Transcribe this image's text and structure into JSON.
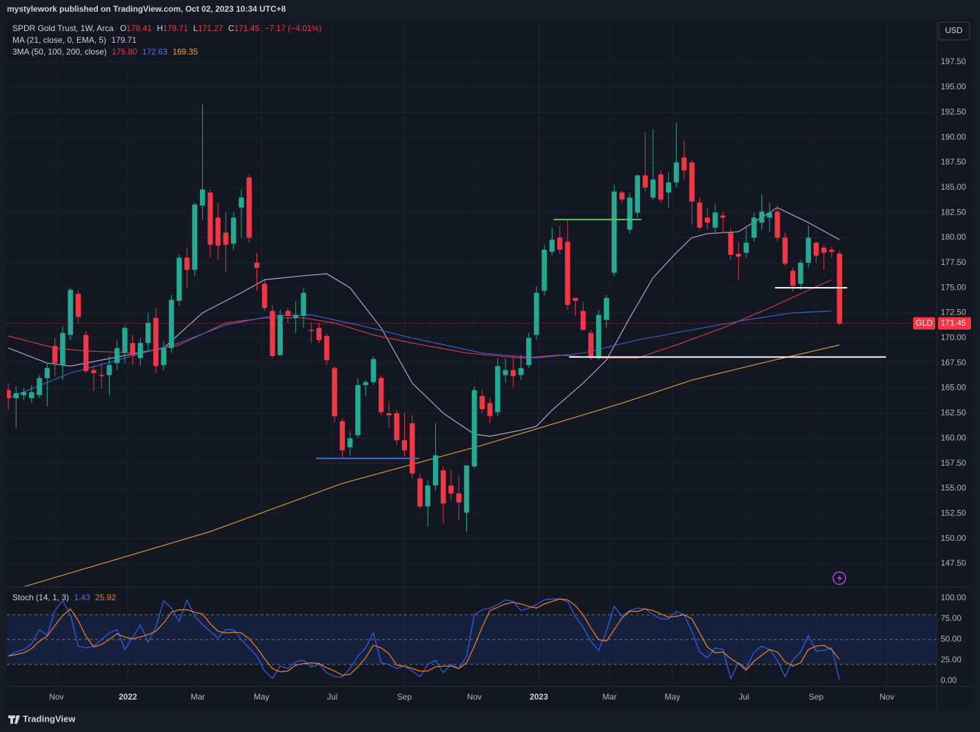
{
  "header": "mystylework published on TradingView.com, Oct 02, 2023 10:34 UTC+8",
  "footer": "TradingView",
  "currency": "USD",
  "symbol_tag": "GLD",
  "chart_data": {
    "type": "candlestick",
    "legend": {
      "symbol": "SPDR Gold Trust, 1W, Arca",
      "ohlc_labels": [
        "O",
        "H",
        "L",
        "C"
      ],
      "change": "−7.17 (−4.01%)",
      "ma": "MA (21, close, 0, EMA, 5)",
      "ma_value": "179.71",
      "ma3": "3MA (50, 100, 200, close)",
      "ma3_values": [
        "175.80",
        "172.63",
        "169.35"
      ]
    },
    "up_color": "#22ab94",
    "down_color": "#f23645",
    "candles": [
      [
        164.8,
        165.5,
        162.8,
        164.0
      ],
      [
        164.0,
        165.2,
        161.0,
        164.5
      ],
      [
        164.3,
        165.0,
        163.8,
        164.6
      ],
      [
        164.0,
        165.3,
        163.5,
        164.6
      ],
      [
        164.3,
        166.3,
        164.0,
        166.0
      ],
      [
        166.0,
        167.5,
        163.2,
        167.0
      ],
      [
        169.2,
        170.0,
        166.2,
        167.5
      ],
      [
        167.3,
        171.2,
        165.8,
        170.5
      ],
      [
        170.3,
        175.0,
        169.8,
        174.8
      ],
      [
        174.4,
        174.8,
        171.5,
        172.1
      ],
      [
        170.3,
        170.7,
        166.5,
        166.7
      ],
      [
        166.8,
        167.3,
        164.7,
        166.5
      ],
      [
        166.3,
        167.5,
        165.0,
        166.2
      ],
      [
        166.3,
        168.2,
        164.3,
        167.3
      ],
      [
        167.5,
        169.8,
        166.8,
        169.0
      ],
      [
        168.5,
        171.3,
        167.5,
        171.0
      ],
      [
        169.5,
        170.3,
        167.3,
        168.3
      ],
      [
        168.0,
        170.0,
        167.2,
        169.5
      ],
      [
        169.5,
        172.5,
        168.8,
        171.5
      ],
      [
        172.0,
        173.0,
        166.5,
        167.2
      ],
      [
        167.3,
        169.7,
        166.8,
        169.0
      ],
      [
        169.0,
        174.3,
        168.5,
        173.8
      ],
      [
        173.7,
        178.3,
        173.2,
        178.0
      ],
      [
        178.0,
        179.0,
        175.0,
        176.8
      ],
      [
        176.8,
        183.5,
        176.2,
        183.3
      ],
      [
        183.2,
        193.3,
        181.8,
        184.8
      ],
      [
        184.5,
        184.8,
        178.0,
        179.3
      ],
      [
        182.0,
        183.5,
        177.8,
        179.2
      ],
      [
        180.5,
        182.5,
        176.6,
        179.3
      ],
      [
        179.4,
        182.5,
        178.8,
        182.0
      ],
      [
        183.0,
        184.8,
        180.0,
        184.0
      ],
      [
        186.0,
        186.3,
        179.5,
        180.0
      ],
      [
        177.5,
        178.5,
        174.7,
        177.0
      ],
      [
        175.4,
        175.8,
        172.7,
        173.0
      ],
      [
        172.7,
        173.3,
        168.0,
        168.2
      ],
      [
        168.3,
        172.8,
        168.2,
        172.3
      ],
      [
        172.7,
        173.0,
        171.5,
        172.2
      ],
      [
        172.0,
        173.7,
        170.5,
        172.3
      ],
      [
        172.2,
        175.0,
        171.0,
        174.5
      ],
      [
        170.8,
        171.5,
        169.5,
        170.7
      ],
      [
        171.0,
        171.5,
        169.5,
        169.8
      ],
      [
        170.2,
        170.4,
        167.3,
        167.8
      ],
      [
        167.0,
        167.2,
        161.6,
        162.2
      ],
      [
        161.7,
        162.0,
        158.0,
        158.8
      ],
      [
        159.1,
        160.7,
        158.3,
        160.0
      ],
      [
        160.3,
        166.0,
        160.0,
        165.3
      ],
      [
        165.3,
        165.8,
        164.2,
        165.6
      ],
      [
        165.6,
        168.2,
        165.3,
        167.9
      ],
      [
        166.0,
        166.3,
        162.3,
        162.6
      ],
      [
        162.5,
        163.7,
        161.0,
        162.3
      ],
      [
        162.5,
        162.8,
        159.3,
        159.8
      ],
      [
        159.8,
        162.5,
        158.2,
        158.8
      ],
      [
        161.5,
        162.3,
        156.0,
        156.5
      ],
      [
        156.0,
        156.5,
        153.0,
        153.2
      ],
      [
        153.2,
        155.8,
        151.2,
        155.3
      ],
      [
        155.3,
        161.5,
        154.8,
        158.3
      ],
      [
        156.8,
        157.2,
        151.5,
        153.5
      ],
      [
        155.3,
        156.8,
        153.8,
        154.5
      ],
      [
        154.5,
        156.3,
        151.8,
        153.6
      ],
      [
        152.6,
        157.3,
        150.7,
        157.3
      ],
      [
        157.2,
        165.2,
        157.0,
        164.8
      ],
      [
        164.2,
        164.8,
        162.5,
        162.9
      ],
      [
        163.5,
        164.0,
        161.5,
        162.2
      ],
      [
        162.6,
        168.0,
        162.2,
        167.2
      ],
      [
        166.3,
        168.0,
        165.5,
        166.8
      ],
      [
        166.8,
        168.2,
        165.0,
        166.2
      ],
      [
        166.3,
        168.3,
        165.8,
        167.0
      ],
      [
        167.3,
        170.5,
        167.0,
        170.0
      ],
      [
        170.3,
        175.2,
        169.8,
        174.5
      ],
      [
        174.7,
        179.3,
        174.2,
        178.8
      ],
      [
        178.6,
        181.0,
        178.2,
        179.8
      ],
      [
        180.0,
        181.2,
        178.3,
        178.8
      ],
      [
        179.6,
        181.8,
        172.8,
        173.3
      ],
      [
        174.0,
        174.0,
        172.2,
        173.7
      ],
      [
        172.7,
        173.6,
        170.8,
        170.8
      ],
      [
        170.5,
        170.8,
        167.8,
        168.0
      ],
      [
        168.0,
        172.8,
        167.8,
        172.3
      ],
      [
        171.8,
        174.3,
        171.0,
        174.0
      ],
      [
        176.5,
        185.3,
        176.2,
        184.6
      ],
      [
        184.5,
        184.7,
        183.5,
        183.8
      ],
      [
        180.8,
        184.5,
        180.4,
        184.0
      ],
      [
        182.5,
        186.3,
        182.0,
        186.2
      ],
      [
        186.2,
        190.5,
        184.6,
        185.0
      ],
      [
        184.0,
        190.8,
        183.8,
        185.8
      ],
      [
        186.3,
        186.7,
        183.5,
        183.8
      ],
      [
        184.5,
        186.5,
        183.0,
        185.5
      ],
      [
        185.5,
        191.4,
        185.0,
        187.5
      ],
      [
        188.0,
        189.7,
        185.8,
        186.7
      ],
      [
        187.5,
        187.8,
        181.3,
        183.6
      ],
      [
        183.5,
        184.0,
        180.8,
        181.0
      ],
      [
        182.0,
        183.0,
        180.8,
        181.5
      ],
      [
        181.0,
        183.3,
        180.5,
        182.5
      ],
      [
        182.2,
        182.6,
        180.6,
        182.0
      ],
      [
        180.5,
        181.0,
        177.8,
        178.3
      ],
      [
        178.4,
        179.6,
        175.8,
        178.1
      ],
      [
        178.5,
        181.0,
        178.0,
        179.5
      ],
      [
        180.0,
        182.5,
        179.6,
        182.0
      ],
      [
        181.5,
        184.3,
        180.8,
        182.6
      ],
      [
        182.0,
        183.5,
        180.6,
        182.5
      ],
      [
        182.6,
        183.2,
        179.6,
        180.0
      ],
      [
        180.0,
        180.5,
        177.2,
        177.4
      ],
      [
        176.7,
        177.0,
        174.6,
        175.2
      ],
      [
        175.4,
        177.8,
        174.8,
        177.5
      ],
      [
        177.5,
        181.2,
        177.0,
        180.0
      ],
      [
        179.5,
        179.6,
        177.5,
        178.2
      ],
      [
        179.0,
        179.3,
        176.8,
        178.5
      ],
      [
        178.8,
        179.1,
        178.0,
        178.6
      ],
      [
        178.41,
        178.71,
        171.27,
        171.45
      ]
    ],
    "lines": [
      {
        "color": "#b7a6d8",
        "x": [
          0,
          5,
          8,
          12,
          20,
          25,
          30,
          33,
          38,
          41,
          44,
          48,
          52,
          56,
          60,
          62,
          66,
          68,
          70,
          74,
          77,
          80,
          83,
          86,
          88,
          90,
          94,
          98,
          99,
          103,
          107
        ],
        "values": [
          169,
          167.5,
          167.2,
          167.8,
          169,
          172.5,
          174.5,
          175.8,
          176.2,
          176.4,
          175,
          171,
          165.5,
          162.5,
          160.4,
          160.2,
          160.8,
          161.2,
          162.8,
          165.5,
          167.8,
          172,
          176,
          178.5,
          180,
          180.4,
          180.6,
          182.5,
          183,
          181.5,
          179.8
        ]
      },
      {
        "color": "#d03a48",
        "x": [
          0,
          6,
          10,
          17,
          22,
          28,
          33,
          38,
          42,
          47,
          52,
          59,
          66,
          71,
          76,
          81,
          86,
          92,
          98,
          106
        ],
        "values": [
          170.2,
          169,
          168.7,
          168.5,
          169.3,
          171.5,
          172,
          172,
          171.5,
          170.3,
          169.5,
          168.5,
          168,
          168.3,
          168,
          168,
          169.3,
          171,
          173,
          175.8
        ]
      },
      {
        "color": "#3f5fcf",
        "x": [
          0,
          8,
          15,
          22,
          28,
          34,
          39,
          45,
          52,
          61,
          68,
          74,
          81,
          88,
          95,
          101,
          106
        ],
        "values": [
          164,
          166.5,
          168,
          169.5,
          171.3,
          172.2,
          172.3,
          171.3,
          170,
          168.5,
          168,
          168.5,
          169.8,
          170.8,
          171.8,
          172.5,
          172.7
        ]
      },
      {
        "color": "#e39a2b",
        "x": [
          2,
          26,
          43,
          61,
          79,
          88,
          97,
          107
        ],
        "values": [
          145.2,
          150.7,
          155.5,
          159.3,
          163.5,
          165.8,
          167.5,
          169.3
        ]
      }
    ],
    "drawings": [
      {
        "color": "#5fc75a",
        "y": 181.8,
        "x": [
          70.2,
          81.5
        ]
      },
      {
        "color": "#ffffff",
        "y": 175,
        "x": [
          98.7,
          108
        ]
      },
      {
        "color": "#ffffff",
        "y": 168.1,
        "x": [
          72.2,
          113
        ]
      },
      {
        "color": "#3f6fe0",
        "y": 158,
        "x": [
          39.6,
          52.9
        ]
      }
    ],
    "xlim": [
      -0.18,
      119.5
    ],
    "ylim": [
      145.23,
      201.63
    ],
    "yticks": [
      {
        "value": 147.5,
        "label": "147.50"
      },
      {
        "value": 150,
        "label": "150.00"
      },
      {
        "value": 152.5,
        "label": "152.50"
      },
      {
        "value": 155,
        "label": "155.00"
      },
      {
        "value": 157.5,
        "label": "157.50"
      },
      {
        "value": 160,
        "label": "160.00"
      },
      {
        "value": 162.5,
        "label": "162.50"
      },
      {
        "value": 165,
        "label": "165.00"
      },
      {
        "value": 167.5,
        "label": "167.50"
      },
      {
        "value": 170,
        "label": "170.00"
      },
      {
        "value": 172.5,
        "label": "172.50"
      },
      {
        "value": 175,
        "label": "175.00"
      },
      {
        "value": 177.5,
        "label": "177.50"
      },
      {
        "value": 180,
        "label": "180.00"
      },
      {
        "value": 182.5,
        "label": "182.50"
      },
      {
        "value": 185,
        "label": "185.00"
      },
      {
        "value": 187.5,
        "label": "187.50"
      },
      {
        "value": 190,
        "label": "190.00"
      },
      {
        "value": 192.5,
        "label": "192.50"
      },
      {
        "value": 195,
        "label": "195.00"
      },
      {
        "value": 197.5,
        "label": "197.50"
      }
    ],
    "xticks": [
      {
        "value": 6.2,
        "label": "Nov"
      },
      {
        "value": 15.4,
        "label": "2022"
      },
      {
        "value": 24.4,
        "label": "Mar"
      },
      {
        "value": 32.6,
        "label": "May"
      },
      {
        "value": 41.7,
        "label": "Jul"
      },
      {
        "value": 51.0,
        "label": "Sep"
      },
      {
        "value": 60.0,
        "label": "Nov"
      },
      {
        "value": 68.3,
        "label": "2023"
      },
      {
        "value": 77.4,
        "label": "Mar"
      },
      {
        "value": 85.5,
        "label": "May"
      },
      {
        "value": 94.7,
        "label": "Jul"
      },
      {
        "value": 104.0,
        "label": "Sep"
      },
      {
        "value": 113.1,
        "label": "Nov"
      }
    ],
    "stoch": {
      "legend": "Stoch (14, 1, 3)",
      "ylim": [
        -6.67,
        112.5
      ],
      "yticks": [
        {
          "value": 0,
          "label": "0.00"
        },
        {
          "value": 25,
          "label": "25.00"
        },
        {
          "value": 50,
          "label": "50.00"
        },
        {
          "value": 75,
          "label": "75.00"
        },
        {
          "value": 100,
          "label": "100.00"
        }
      ],
      "band": [
        20,
        80
      ],
      "levels": [
        80,
        50,
        20
      ],
      "series": [
        {
          "color": "#2f5ff0",
          "values": [
            30,
            35,
            38,
            45,
            62,
            55,
            85,
            97,
            80,
            42,
            40,
            42,
            50,
            58,
            62,
            38,
            52,
            68,
            47,
            65,
            97,
            88,
            72,
            98,
            78,
            68,
            60,
            52,
            62,
            62,
            50,
            40,
            30,
            12,
            3,
            18,
            15,
            23,
            25,
            17,
            20,
            10,
            5,
            5,
            15,
            30,
            40,
            58,
            22,
            20,
            15,
            18,
            12,
            5,
            20,
            25,
            10,
            20,
            15,
            30,
            80,
            86,
            88,
            92,
            98,
            96,
            85,
            88,
            92,
            98,
            99,
            99,
            96,
            78,
            65,
            48,
            37,
            60,
            90,
            78,
            85,
            88,
            87,
            80,
            75,
            75,
            84,
            80,
            60,
            35,
            28,
            40,
            38,
            3,
            22,
            15,
            35,
            42,
            38,
            25,
            5,
            25,
            35,
            55,
            36,
            37,
            40,
            1.43
          ]
        },
        {
          "color": "#f57c1f",
          "values": [
            30,
            32,
            34,
            39,
            48,
            54,
            67,
            79,
            87,
            73,
            54,
            41,
            44,
            50,
            57,
            53,
            51,
            53,
            56,
            60,
            70,
            83,
            86,
            86,
            83,
            81,
            69,
            60,
            58,
            59,
            58,
            51,
            40,
            27,
            15,
            11,
            12,
            19,
            21,
            22,
            21,
            16,
            12,
            7,
            8,
            17,
            28,
            43,
            40,
            33,
            19,
            18,
            15,
            12,
            12,
            17,
            18,
            18,
            15,
            22,
            42,
            65,
            85,
            89,
            93,
            95,
            93,
            90,
            88,
            93,
            96,
            99,
            98,
            91,
            80,
            64,
            50,
            48,
            62,
            76,
            84,
            84,
            87,
            85,
            81,
            77,
            78,
            80,
            75,
            58,
            41,
            34,
            35,
            27,
            21,
            13,
            24,
            31,
            38,
            35,
            23,
            18,
            22,
            38,
            42,
            43,
            38,
            25.92
          ]
        }
      ]
    }
  }
}
